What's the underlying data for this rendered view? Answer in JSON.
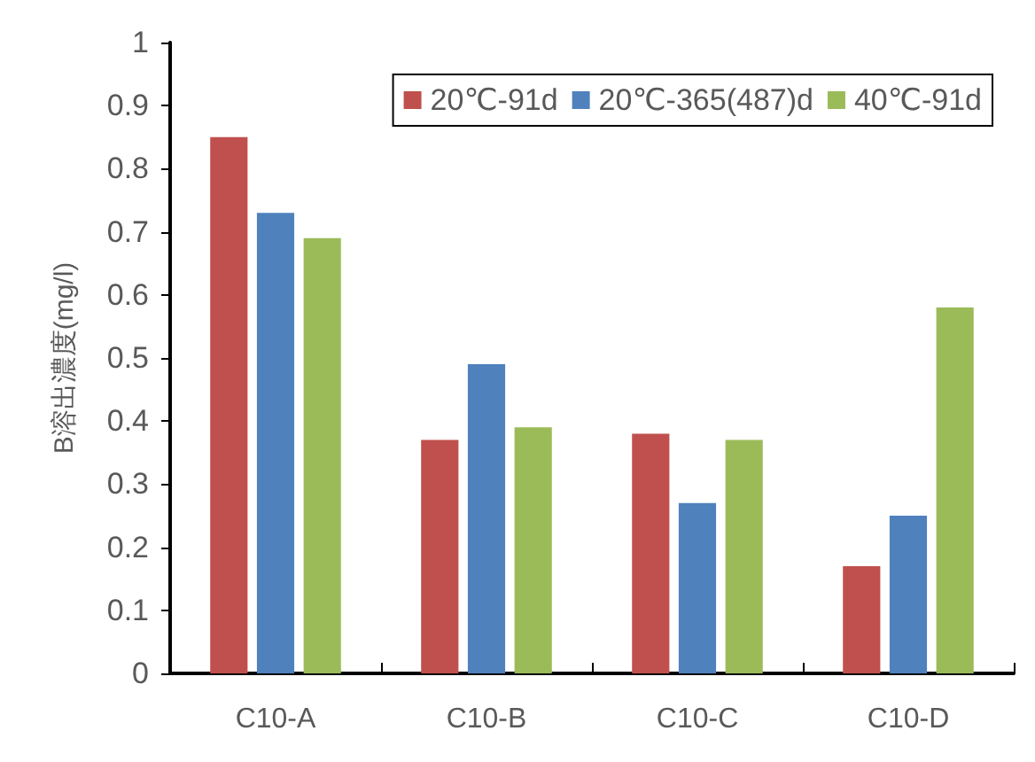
{
  "chart_data": {
    "type": "bar",
    "ylabel": "B溶出濃度(mg/l)",
    "categories": [
      "C10-A",
      "C10-B",
      "C10-C",
      "C10-D"
    ],
    "series": [
      {
        "name": "20℃-91d",
        "color": "#c0504d",
        "values": [
          0.85,
          0.37,
          0.38,
          0.17
        ]
      },
      {
        "name": "20℃-365(487)d",
        "color": "#4f81bd",
        "values": [
          0.73,
          0.49,
          0.27,
          0.25
        ]
      },
      {
        "name": "40℃-91d",
        "color": "#9bbb59",
        "values": [
          0.69,
          0.39,
          0.37,
          0.58
        ]
      }
    ],
    "ylim": [
      0,
      1
    ],
    "yticks": [
      0,
      0.1,
      0.2,
      0.3,
      0.4,
      0.5,
      0.6,
      0.7,
      0.8,
      0.9,
      1
    ],
    "grid": false,
    "legend": "top right"
  }
}
